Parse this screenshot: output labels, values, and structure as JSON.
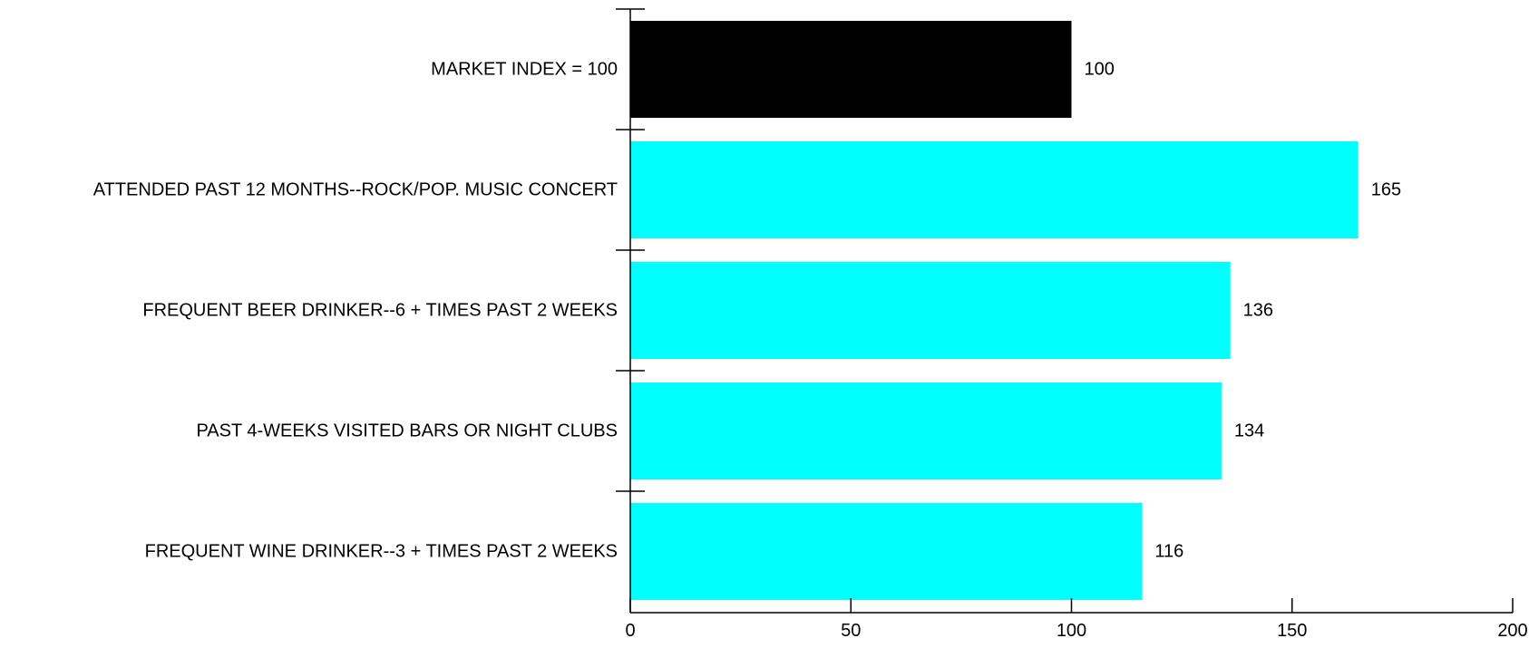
{
  "chart_data": {
    "type": "bar",
    "orientation": "horizontal",
    "title": "",
    "xlabel": "",
    "ylabel": "",
    "categories": [
      "MARKET INDEX = 100",
      "ATTENDED PAST 12 MONTHS--ROCK/POP. MUSIC CONCERT",
      "FREQUENT BEER DRINKER--6 + TIMES PAST 2 WEEKS",
      "PAST 4-WEEKS VISITED BARS OR NIGHT CLUBS",
      "FREQUENT WINE DRINKER--3 + TIMES PAST 2 WEEKS"
    ],
    "values": [
      100,
      165,
      136,
      134,
      116
    ],
    "data_labels": [
      "100",
      "165",
      "136",
      "134",
      "116"
    ],
    "bar_colors": [
      "#000000",
      "#00ffff",
      "#00ffff",
      "#00ffff",
      "#00ffff"
    ],
    "xlim": [
      0,
      200
    ],
    "xticks": [
      0,
      50,
      100,
      150,
      200
    ],
    "xtick_labels": [
      "0",
      "50",
      "100",
      "150",
      "200"
    ],
    "grid": false,
    "legend": "none"
  }
}
